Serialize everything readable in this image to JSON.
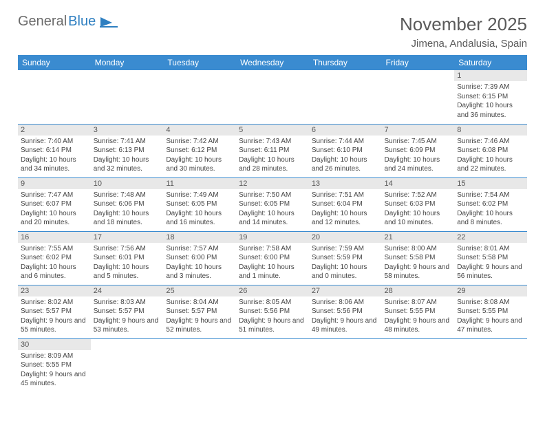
{
  "logo": {
    "part1": "General",
    "part2": "Blue"
  },
  "title": "November 2025",
  "location": "Jimena, Andalusia, Spain",
  "colors": {
    "header_bg": "#3a8bd0",
    "header_text": "#ffffff",
    "daynum_bg": "#e8e8e8",
    "border": "#3a8bd0",
    "logo_gray": "#6b6b6b",
    "logo_blue": "#2e7fc1"
  },
  "day_headers": [
    "Sunday",
    "Monday",
    "Tuesday",
    "Wednesday",
    "Thursday",
    "Friday",
    "Saturday"
  ],
  "weeks": [
    [
      null,
      null,
      null,
      null,
      null,
      null,
      {
        "n": "1",
        "sr": "Sunrise: 7:39 AM",
        "ss": "Sunset: 6:15 PM",
        "dl": "Daylight: 10 hours and 36 minutes."
      }
    ],
    [
      {
        "n": "2",
        "sr": "Sunrise: 7:40 AM",
        "ss": "Sunset: 6:14 PM",
        "dl": "Daylight: 10 hours and 34 minutes."
      },
      {
        "n": "3",
        "sr": "Sunrise: 7:41 AM",
        "ss": "Sunset: 6:13 PM",
        "dl": "Daylight: 10 hours and 32 minutes."
      },
      {
        "n": "4",
        "sr": "Sunrise: 7:42 AM",
        "ss": "Sunset: 6:12 PM",
        "dl": "Daylight: 10 hours and 30 minutes."
      },
      {
        "n": "5",
        "sr": "Sunrise: 7:43 AM",
        "ss": "Sunset: 6:11 PM",
        "dl": "Daylight: 10 hours and 28 minutes."
      },
      {
        "n": "6",
        "sr": "Sunrise: 7:44 AM",
        "ss": "Sunset: 6:10 PM",
        "dl": "Daylight: 10 hours and 26 minutes."
      },
      {
        "n": "7",
        "sr": "Sunrise: 7:45 AM",
        "ss": "Sunset: 6:09 PM",
        "dl": "Daylight: 10 hours and 24 minutes."
      },
      {
        "n": "8",
        "sr": "Sunrise: 7:46 AM",
        "ss": "Sunset: 6:08 PM",
        "dl": "Daylight: 10 hours and 22 minutes."
      }
    ],
    [
      {
        "n": "9",
        "sr": "Sunrise: 7:47 AM",
        "ss": "Sunset: 6:07 PM",
        "dl": "Daylight: 10 hours and 20 minutes."
      },
      {
        "n": "10",
        "sr": "Sunrise: 7:48 AM",
        "ss": "Sunset: 6:06 PM",
        "dl": "Daylight: 10 hours and 18 minutes."
      },
      {
        "n": "11",
        "sr": "Sunrise: 7:49 AM",
        "ss": "Sunset: 6:05 PM",
        "dl": "Daylight: 10 hours and 16 minutes."
      },
      {
        "n": "12",
        "sr": "Sunrise: 7:50 AM",
        "ss": "Sunset: 6:05 PM",
        "dl": "Daylight: 10 hours and 14 minutes."
      },
      {
        "n": "13",
        "sr": "Sunrise: 7:51 AM",
        "ss": "Sunset: 6:04 PM",
        "dl": "Daylight: 10 hours and 12 minutes."
      },
      {
        "n": "14",
        "sr": "Sunrise: 7:52 AM",
        "ss": "Sunset: 6:03 PM",
        "dl": "Daylight: 10 hours and 10 minutes."
      },
      {
        "n": "15",
        "sr": "Sunrise: 7:54 AM",
        "ss": "Sunset: 6:02 PM",
        "dl": "Daylight: 10 hours and 8 minutes."
      }
    ],
    [
      {
        "n": "16",
        "sr": "Sunrise: 7:55 AM",
        "ss": "Sunset: 6:02 PM",
        "dl": "Daylight: 10 hours and 6 minutes."
      },
      {
        "n": "17",
        "sr": "Sunrise: 7:56 AM",
        "ss": "Sunset: 6:01 PM",
        "dl": "Daylight: 10 hours and 5 minutes."
      },
      {
        "n": "18",
        "sr": "Sunrise: 7:57 AM",
        "ss": "Sunset: 6:00 PM",
        "dl": "Daylight: 10 hours and 3 minutes."
      },
      {
        "n": "19",
        "sr": "Sunrise: 7:58 AM",
        "ss": "Sunset: 6:00 PM",
        "dl": "Daylight: 10 hours and 1 minute."
      },
      {
        "n": "20",
        "sr": "Sunrise: 7:59 AM",
        "ss": "Sunset: 5:59 PM",
        "dl": "Daylight: 10 hours and 0 minutes."
      },
      {
        "n": "21",
        "sr": "Sunrise: 8:00 AM",
        "ss": "Sunset: 5:58 PM",
        "dl": "Daylight: 9 hours and 58 minutes."
      },
      {
        "n": "22",
        "sr": "Sunrise: 8:01 AM",
        "ss": "Sunset: 5:58 PM",
        "dl": "Daylight: 9 hours and 56 minutes."
      }
    ],
    [
      {
        "n": "23",
        "sr": "Sunrise: 8:02 AM",
        "ss": "Sunset: 5:57 PM",
        "dl": "Daylight: 9 hours and 55 minutes."
      },
      {
        "n": "24",
        "sr": "Sunrise: 8:03 AM",
        "ss": "Sunset: 5:57 PM",
        "dl": "Daylight: 9 hours and 53 minutes."
      },
      {
        "n": "25",
        "sr": "Sunrise: 8:04 AM",
        "ss": "Sunset: 5:57 PM",
        "dl": "Daylight: 9 hours and 52 minutes."
      },
      {
        "n": "26",
        "sr": "Sunrise: 8:05 AM",
        "ss": "Sunset: 5:56 PM",
        "dl": "Daylight: 9 hours and 51 minutes."
      },
      {
        "n": "27",
        "sr": "Sunrise: 8:06 AM",
        "ss": "Sunset: 5:56 PM",
        "dl": "Daylight: 9 hours and 49 minutes."
      },
      {
        "n": "28",
        "sr": "Sunrise: 8:07 AM",
        "ss": "Sunset: 5:55 PM",
        "dl": "Daylight: 9 hours and 48 minutes."
      },
      {
        "n": "29",
        "sr": "Sunrise: 8:08 AM",
        "ss": "Sunset: 5:55 PM",
        "dl": "Daylight: 9 hours and 47 minutes."
      }
    ],
    [
      {
        "n": "30",
        "sr": "Sunrise: 8:09 AM",
        "ss": "Sunset: 5:55 PM",
        "dl": "Daylight: 9 hours and 45 minutes."
      },
      null,
      null,
      null,
      null,
      null,
      null
    ]
  ]
}
